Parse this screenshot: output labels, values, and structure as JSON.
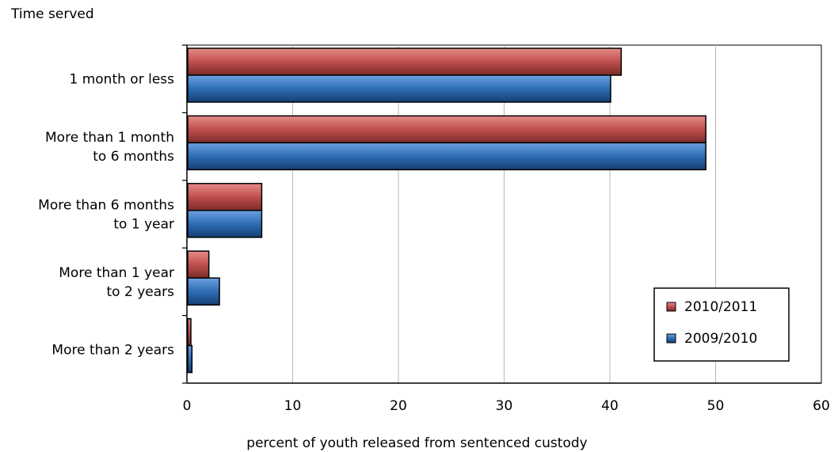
{
  "chart_data": {
    "type": "bar",
    "orientation": "horizontal",
    "ylabel": "Time served",
    "xlabel": "percent of youth released from sentenced custody",
    "categories": [
      [
        "1 month or less"
      ],
      [
        "More than 1 month",
        "to 6 months"
      ],
      [
        "More than 6 months",
        "to 1 year"
      ],
      [
        "More than 1 year",
        "to 2 years"
      ],
      [
        "More than 2 years"
      ]
    ],
    "series": [
      {
        "name": "2010/2011",
        "color": "#c0504d",
        "values": [
          41,
          49,
          7,
          2,
          0.3
        ]
      },
      {
        "name": "2009/2010",
        "color": "#2e6db4",
        "values": [
          40,
          49,
          7,
          3,
          0.4
        ]
      }
    ],
    "xlim": [
      0,
      60
    ],
    "xticks": [
      0,
      10,
      20,
      30,
      40,
      50,
      60
    ],
    "grid": "vertical",
    "legend_position": "bottom-right"
  }
}
